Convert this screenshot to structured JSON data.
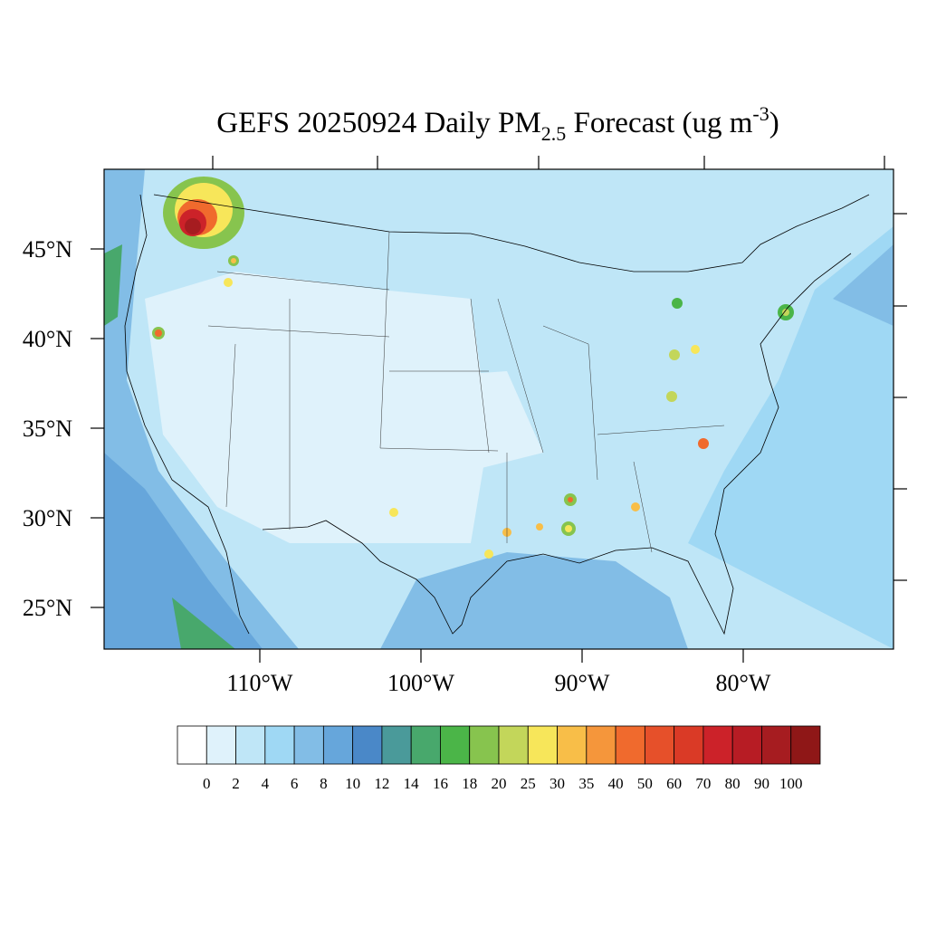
{
  "title": {
    "main": "GEFS 20250924 Daily PM",
    "sub": "2.5",
    "mid": " Forecast (ug m",
    "sup": "-3",
    "end": ")"
  },
  "lat_ticks": [
    {
      "value": 45,
      "label": "45°N"
    },
    {
      "value": 40,
      "label": "40°N"
    },
    {
      "value": 35,
      "label": "35°N"
    },
    {
      "value": 30,
      "label": "30°N"
    },
    {
      "value": 25,
      "label": "25°N"
    }
  ],
  "lon_ticks": [
    {
      "value": -110,
      "label": "110°W"
    },
    {
      "value": -100,
      "label": "100°W"
    },
    {
      "value": -90,
      "label": "90°W"
    },
    {
      "value": -80,
      "label": "80°W"
    }
  ],
  "colorbar": {
    "levels": [
      0,
      2,
      4,
      6,
      8,
      10,
      12,
      14,
      16,
      18,
      20,
      25,
      30,
      35,
      40,
      50,
      60,
      70,
      80,
      90,
      100
    ],
    "colors": [
      "#ffffff",
      "#dff2fb",
      "#bfe6f7",
      "#9fd8f4",
      "#82bde6",
      "#66a6db",
      "#4a88c8",
      "#4a9a9a",
      "#48a86c",
      "#4bb548",
      "#87c44e",
      "#c3d65a",
      "#f7e65a",
      "#f8be48",
      "#f5963b",
      "#f06a2d",
      "#e6502a",
      "#da3a26",
      "#cc2229",
      "#b71c24",
      "#a61c20",
      "#8f1717"
    ]
  }
}
